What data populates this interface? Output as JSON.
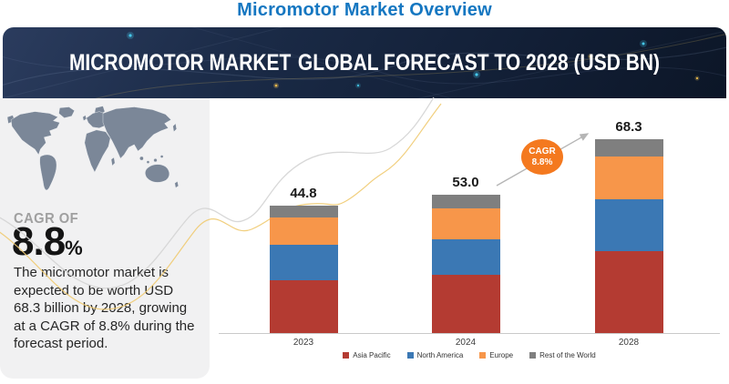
{
  "page_title": "Micromotor Market Overview",
  "banner": {
    "title_market": "MICROMOTOR MARKET",
    "title_forecast": "GLOBAL FORECAST TO 2028 (USD BN)"
  },
  "left_panel": {
    "cagr_label": "CAGR OF",
    "cagr_value": "8.8",
    "cagr_unit": "%",
    "description": "The micromotor market is expected to be worth USD 68.3 billion by 2028, growing at a CAGR of 8.8% during the forecast period."
  },
  "cagr_badge": {
    "line1": "CAGR",
    "line2": "8.8%"
  },
  "chart_data": {
    "type": "bar",
    "stacked": true,
    "unit": "USD BN",
    "categories": [
      "2023",
      "2024",
      "2028"
    ],
    "totals_display": [
      "44.8",
      "53.0",
      "68.3"
    ],
    "series": [
      {
        "name": "Asia Pacific",
        "color": "#b43b32",
        "values": [
          18.7,
          22.4,
          28.8
        ]
      },
      {
        "name": "North America",
        "color": "#3b78b4",
        "values": [
          12.3,
          13.7,
          18.3
        ]
      },
      {
        "name": "Europe",
        "color": "#f7964a",
        "values": [
          9.8,
          11.9,
          15.0
        ]
      },
      {
        "name": "Rest of the World",
        "color": "#7f7f7f",
        "values": [
          4.0,
          5.0,
          6.2
        ]
      }
    ],
    "legend_position": "bottom",
    "annotation": {
      "label": "CAGR 8.8%"
    },
    "axis": {
      "baseline": true,
      "gridlines": false
    }
  },
  "colors": {
    "title_blue": "#1577c1",
    "banner_navy": "#16243c",
    "badge_orange": "#f4791f",
    "panel_gray": "#f1f1f2",
    "map_gray_blue": "#7b8798",
    "wave_gold": "#f0ca70",
    "wave_gray": "#d4d4d4"
  }
}
